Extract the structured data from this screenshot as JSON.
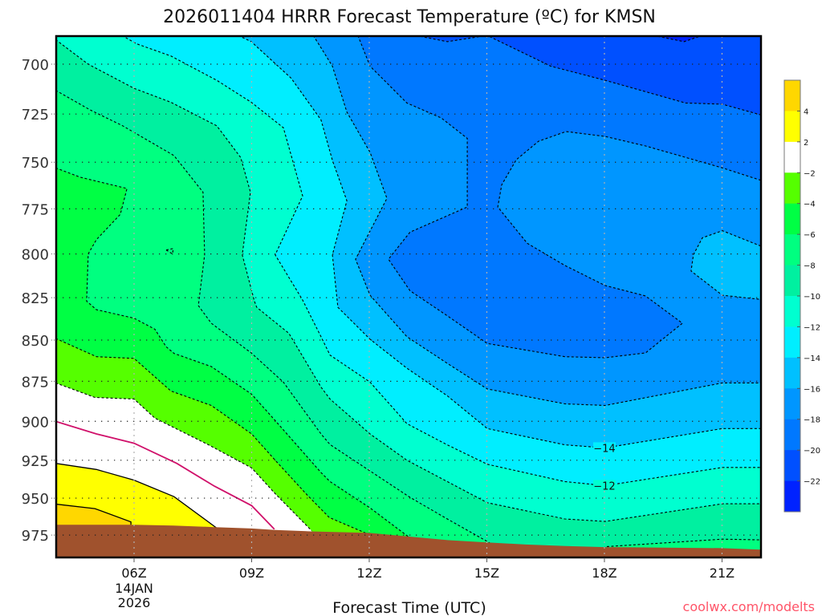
{
  "chart_data": {
    "type": "contour",
    "title": "2026011404 HRRR Forecast Temperature (ºC) for KMSN",
    "xlabel": "Forecast Time (UTC)",
    "ylabel": "",
    "xlim_hours": [
      4.01,
      22
    ],
    "ylim_hpa": [
      990.5,
      686.3
    ],
    "y_scale": "log-pressure",
    "grid": true,
    "x_ticks": [
      {
        "hour": 6,
        "label": "06Z",
        "sub": [
          "14JAN",
          "2026"
        ]
      },
      {
        "hour": 9,
        "label": "09Z"
      },
      {
        "hour": 12,
        "label": "12Z"
      },
      {
        "hour": 15,
        "label": "15Z"
      },
      {
        "hour": 18,
        "label": "18Z"
      },
      {
        "hour": 21,
        "label": "21Z"
      }
    ],
    "y_ticks": [
      {
        "hpa": 700,
        "label": "700"
      },
      {
        "hpa": 725,
        "label": "725"
      },
      {
        "hpa": 750,
        "label": "750"
      },
      {
        "hpa": 775,
        "label": "775"
      },
      {
        "hpa": 800,
        "label": "800"
      },
      {
        "hpa": 825,
        "label": "825"
      },
      {
        "hpa": 850,
        "label": "850"
      },
      {
        "hpa": 875,
        "label": "875"
      },
      {
        "hpa": 900,
        "label": "900"
      },
      {
        "hpa": 925,
        "label": "925"
      },
      {
        "hpa": 950,
        "label": "950"
      },
      {
        "hpa": 975,
        "label": "975"
      }
    ],
    "colorbar": {
      "colors": [
        "#ffd700",
        "#ffff00",
        "#ffffff",
        "#55ff00",
        "#00ff44",
        "#00ff80",
        "#00f0a0",
        "#00ffd0",
        "#00eeff",
        "#00c0ff",
        "#0096ff",
        "#0078ff",
        "#0050ff",
        "#0022ff"
      ],
      "labels": [
        "4",
        "2",
        "−2",
        "−4",
        "−6",
        "−8",
        "−10",
        "−12",
        "−14",
        "−16",
        "−18",
        "−20",
        "−22"
      ]
    },
    "base_color": "#ffd700",
    "ground_color": "#a0522d",
    "ground_surface_hpa": [
      [
        4.0,
        968
      ],
      [
        6.0,
        968
      ],
      [
        7.0,
        968.5
      ],
      [
        8.0,
        969.5
      ],
      [
        9.0,
        970.5
      ],
      [
        9.6,
        971.5
      ],
      [
        10.5,
        972.5
      ],
      [
        12.0,
        973.5
      ],
      [
        13.0,
        976
      ],
      [
        14.0,
        978.5
      ],
      [
        15.0,
        980
      ],
      [
        16.0,
        981.5
      ],
      [
        17.0,
        982.5
      ],
      [
        18.0,
        983.3
      ],
      [
        21.0,
        984
      ],
      [
        22.0,
        985
      ]
    ],
    "contours": [
      {
        "level": 4,
        "fill": "#ffff00",
        "line": "solid",
        "closure": "ground",
        "points": [
          [
            4.0,
            954
          ],
          [
            5.0,
            957
          ],
          [
            5.92,
            966
          ],
          [
            5.92,
            968
          ]
        ]
      },
      {
        "level": 2,
        "fill": "#ffffff",
        "line": "solid",
        "closure": "ground",
        "points": [
          [
            4.0,
            927
          ],
          [
            5.04,
            931
          ],
          [
            6.0,
            938
          ],
          [
            7.02,
            949
          ],
          [
            8.1,
            970
          ]
        ]
      },
      {
        "level": 0,
        "fill": null,
        "line": "magenta",
        "closure": "none",
        "points": [
          [
            4.0,
            900
          ],
          [
            5.04,
            908
          ],
          [
            6.0,
            914
          ],
          [
            7.09,
            927
          ],
          [
            8.05,
            942
          ],
          [
            9.0,
            955
          ],
          [
            9.58,
            971
          ]
        ]
      },
      {
        "level": -2,
        "fill": "#55ff00",
        "line": "dashed",
        "closure": "ground",
        "points": [
          [
            4.0,
            876
          ],
          [
            5.0,
            885
          ],
          [
            6.0,
            886
          ],
          [
            6.53,
            898
          ],
          [
            7.9,
            915
          ],
          [
            9.0,
            930
          ],
          [
            9.6,
            947
          ],
          [
            10.53,
            972
          ]
        ]
      },
      {
        "level": -4,
        "fill": "#00ff44",
        "line": "dashed",
        "closure": "ground",
        "points": [
          [
            4.0,
            849
          ],
          [
            5.04,
            860
          ],
          [
            6.0,
            861
          ],
          [
            6.94,
            881
          ],
          [
            7.97,
            890
          ],
          [
            9.0,
            908
          ],
          [
            9.6,
            925
          ],
          [
            10.42,
            948
          ],
          [
            10.98,
            963
          ],
          [
            11.94,
            974
          ]
        ]
      },
      {
        "level": -6,
        "fill": "#00ff80",
        "line": "dashed",
        "closure": "ground",
        "points": [
          [
            4.0,
            753
          ],
          [
            4.63,
            758
          ],
          [
            5.82,
            764
          ],
          [
            5.65,
            778
          ],
          [
            5.04,
            792
          ],
          [
            4.83,
            800
          ],
          [
            4.79,
            827
          ],
          [
            5.04,
            832
          ],
          [
            6.0,
            837
          ],
          [
            6.53,
            843.5
          ],
          [
            6.82,
            854
          ],
          [
            7.02,
            858
          ],
          [
            7.97,
            866
          ],
          [
            9.0,
            883
          ],
          [
            9.6,
            899.5
          ],
          [
            10.77,
            933
          ],
          [
            11.0,
            939
          ],
          [
            12.02,
            956.5
          ],
          [
            13.04,
            977
          ]
        ]
      },
      {
        "level": -8,
        "fill": "#00f0a0",
        "line": "dashed",
        "closure": "right",
        "points": [
          [
            4.0,
            713
          ],
          [
            4.89,
            723
          ],
          [
            5.71,
            731
          ],
          [
            7.02,
            746.5
          ],
          [
            7.76,
            766
          ],
          [
            7.8,
            800.5
          ],
          [
            7.64,
            829.6
          ],
          [
            7.97,
            840
          ],
          [
            8.99,
            857.7
          ],
          [
            9.81,
            875.5
          ],
          [
            10.77,
            908
          ],
          [
            11.0,
            914.8
          ],
          [
            12.02,
            932
          ],
          [
            13.04,
            949.5
          ],
          [
            13.99,
            964
          ],
          [
            15.01,
            979.4
          ],
          [
            15.5,
            987
          ],
          [
            17.9,
            987
          ],
          [
            18.02,
            983
          ],
          [
            21.01,
            977.8
          ],
          [
            21.99,
            978.3
          ]
        ]
      },
      {
        "level": -10,
        "fill": "#00ffd0",
        "line": "dashed",
        "closure": "right",
        "points": [
          [
            4.0,
            688
          ],
          [
            4.83,
            700
          ],
          [
            6.0,
            712
          ],
          [
            6.94,
            719
          ],
          [
            8.11,
            731
          ],
          [
            8.72,
            747.5
          ],
          [
            8.97,
            766
          ],
          [
            8.76,
            800.5
          ],
          [
            9.07,
            827
          ],
          [
            9.13,
            830.6
          ],
          [
            9.95,
            846
          ],
          [
            10.77,
            878.6
          ],
          [
            11.0,
            886
          ],
          [
            12.02,
            908
          ],
          [
            12.96,
            925
          ],
          [
            13.99,
            939
          ],
          [
            15.01,
            953
          ],
          [
            16.99,
            964
          ],
          [
            18.02,
            965.7
          ],
          [
            21.01,
            953.8
          ],
          [
            21.99,
            953.8
          ]
        ]
      },
      {
        "level": -12,
        "fill": "#00eeff",
        "line": "dashed",
        "closure": "right",
        "points": [
          [
            5.69,
            686
          ],
          [
            6.06,
            690
          ],
          [
            6.94,
            696
          ],
          [
            8.11,
            708
          ],
          [
            8.99,
            719
          ],
          [
            9.81,
            732
          ],
          [
            10.3,
            768
          ],
          [
            9.6,
            800.5
          ],
          [
            10.3,
            826.4
          ],
          [
            10.77,
            848
          ],
          [
            11.0,
            859
          ],
          [
            12.02,
            875.5
          ],
          [
            12.96,
            901.5
          ],
          [
            13.99,
            915
          ],
          [
            15.01,
            927.6
          ],
          [
            16.99,
            939
          ],
          [
            18.02,
            941.7
          ],
          [
            21.01,
            929.7
          ],
          [
            21.99,
            929.7
          ]
        ]
      },
      {
        "level": -14,
        "fill": "#00c0ff",
        "line": "dashed",
        "closure": "right",
        "points": [
          [
            8.66,
            686
          ],
          [
            8.99,
            689
          ],
          [
            10.01,
            707
          ],
          [
            10.77,
            728
          ],
          [
            11.06,
            749
          ],
          [
            11.43,
            770.6
          ],
          [
            11.06,
            800.5
          ],
          [
            11.2,
            830.6
          ],
          [
            12.02,
            849.5
          ],
          [
            12.96,
            867
          ],
          [
            13.99,
            884
          ],
          [
            15.01,
            904.6
          ],
          [
            16.99,
            915
          ],
          [
            18.02,
            917
          ],
          [
            21.01,
            904.6
          ],
          [
            21.99,
            904.6
          ]
        ]
      },
      {
        "level": -16,
        "fill": "#0096ff",
        "line": "dashed",
        "closure": "right",
        "points": [
          [
            10.57,
            686
          ],
          [
            10.77,
            692
          ],
          [
            11.06,
            701
          ],
          [
            11.43,
            724
          ],
          [
            12.02,
            744.8
          ],
          [
            12.45,
            769.3
          ],
          [
            11.65,
            803
          ],
          [
            12.02,
            823.6
          ],
          [
            12.96,
            848
          ],
          [
            13.99,
            864
          ],
          [
            15.01,
            879.7
          ],
          [
            16.99,
            889
          ],
          [
            18.02,
            890
          ],
          [
            21.01,
            876
          ],
          [
            21.99,
            876
          ]
        ]
      },
      {
        "level": -16,
        "fill": "#00c0ff",
        "line": "dashed",
        "closure": "closed",
        "points": [
          [
            21.99,
            795.6
          ],
          [
            21.01,
            787
          ],
          [
            20.5,
            791
          ],
          [
            20.27,
            800.5
          ],
          [
            20.21,
            809.7
          ],
          [
            21.01,
            823.6
          ],
          [
            21.99,
            826
          ]
        ]
      },
      {
        "level": -18,
        "fill": "#0078ff",
        "line": "dashed",
        "closure": "right",
        "points": [
          [
            11.71,
            686
          ],
          [
            12.02,
            701
          ],
          [
            12.96,
            719.4
          ],
          [
            13.84,
            727
          ],
          [
            14.5,
            737.5
          ],
          [
            14.5,
            774
          ],
          [
            13.04,
            787.8
          ],
          [
            12.49,
            803
          ],
          [
            13.04,
            821
          ],
          [
            13.99,
            835.6
          ],
          [
            15.01,
            852
          ],
          [
            16.99,
            860
          ],
          [
            18.02,
            860.6
          ],
          [
            19.05,
            857.7
          ],
          [
            19.99,
            840
          ],
          [
            19.05,
            824
          ],
          [
            18.02,
            818
          ],
          [
            16.99,
            806.5
          ],
          [
            16.03,
            794
          ],
          [
            15.28,
            774
          ],
          [
            15.38,
            762
          ],
          [
            15.75,
            748.7
          ],
          [
            16.32,
            739
          ],
          [
            17.02,
            734
          ],
          [
            18.02,
            736.5
          ],
          [
            19.05,
            741.5
          ],
          [
            21.01,
            753
          ],
          [
            21.99,
            759.6
          ]
        ]
      },
      {
        "level": -20,
        "fill": "#0050ff",
        "line": "dashed",
        "closure": "right",
        "points": [
          [
            13.19,
            686
          ],
          [
            13.99,
            689
          ],
          [
            15.01,
            686
          ],
          [
            16.63,
            701
          ],
          [
            18.02,
            708
          ],
          [
            20.07,
            719.4
          ],
          [
            21.01,
            720
          ],
          [
            21.99,
            725.4
          ]
        ]
      },
      {
        "level": -22,
        "fill": "#0022ff",
        "line": "dashed",
        "closure": "closed",
        "points": [
          [
            19.25,
            686
          ],
          [
            20.03,
            689
          ],
          [
            20.5,
            686
          ]
        ]
      },
      {
        "level": -6,
        "fill": null,
        "line": "dashed",
        "closure": "closed",
        "points": [
          [
            6.82,
            797.8
          ],
          [
            7.0,
            797
          ],
          [
            6.98,
            800
          ]
        ]
      }
    ],
    "contour_labels": [
      {
        "text": "−14",
        "hour": 18.0,
        "hpa": 917,
        "bg": "#00eeff"
      },
      {
        "text": "−12",
        "hour": 18.0,
        "hpa": 941.7,
        "bg": "#00ffd0"
      }
    ]
  },
  "watermark": "coolwx.com/modelts"
}
